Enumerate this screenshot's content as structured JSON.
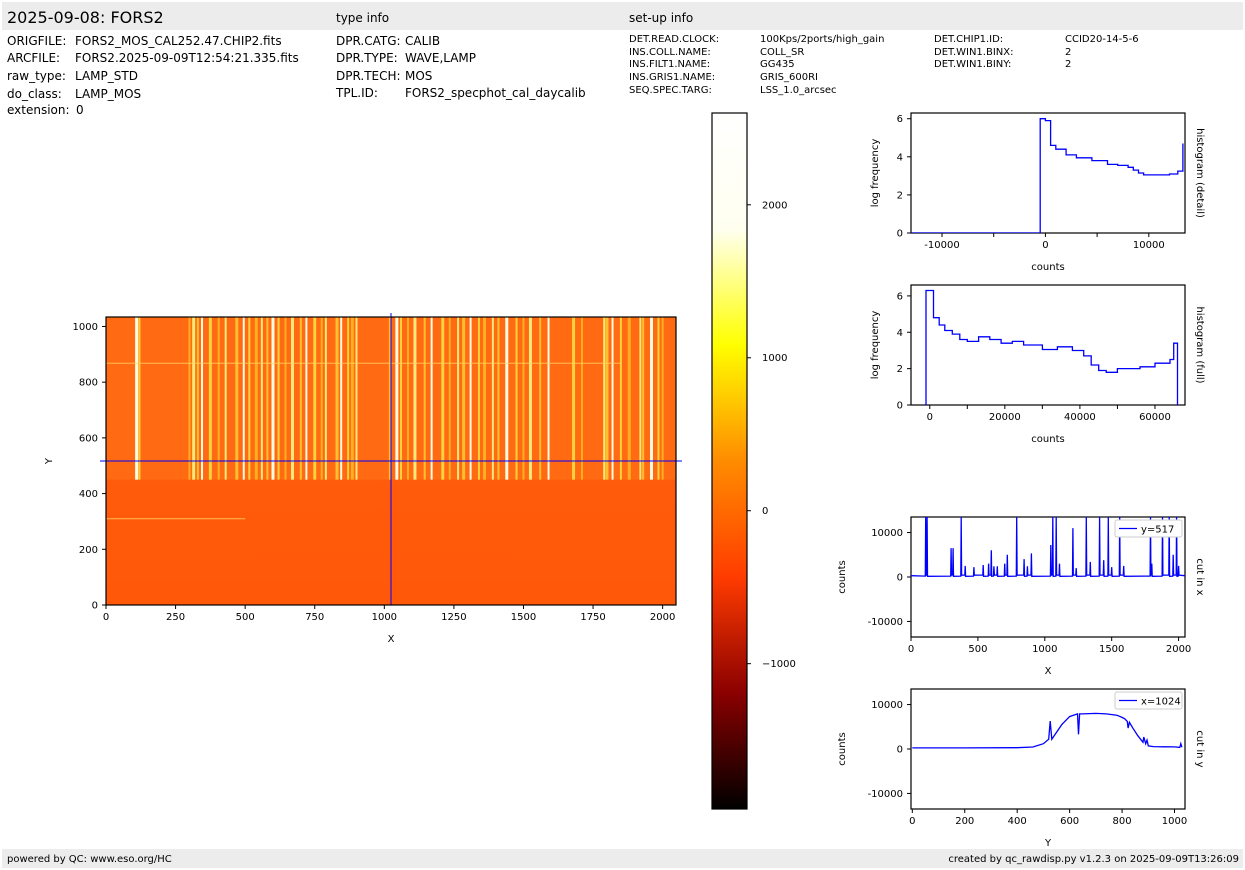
{
  "header": {
    "title": "2025-09-08: FORS2",
    "type_info_label": "type info",
    "setup_info_label": "set-up info"
  },
  "file_info": [
    {
      "key": "ORIGFILE:",
      "value": "FORS2_MOS_CAL252.47.CHIP2.fits"
    },
    {
      "key": "ARCFILE:",
      "value": "FORS2.2025-09-09T12:54:21.335.fits"
    },
    {
      "key": "raw_type:",
      "value": "LAMP_STD"
    },
    {
      "key": "do_class:",
      "value": "LAMP_MOS"
    },
    {
      "key": "extension:",
      "value": "0"
    }
  ],
  "type_info": [
    {
      "key": "DPR.CATG:",
      "value": "CALIB"
    },
    {
      "key": "DPR.TYPE:",
      "value": "WAVE,LAMP"
    },
    {
      "key": "DPR.TECH:",
      "value": "MOS"
    },
    {
      "key": "TPL.ID:",
      "value": "FORS2_specphot_cal_daycalib"
    }
  ],
  "setup_info": [
    {
      "key": "DET.READ.CLOCK:",
      "value": "100Kps/2ports/high_gain"
    },
    {
      "key": "INS.COLL.NAME:",
      "value": "COLL_SR"
    },
    {
      "key": "INS.FILT1.NAME:",
      "value": "GG435"
    },
    {
      "key": "INS.GRIS1.NAME:",
      "value": "GRIS_600RI"
    },
    {
      "key": "SEQ.SPEC.TARG:",
      "value": "LSS_1.0_arcsec"
    }
  ],
  "setup_info2": [
    {
      "key": "DET.CHIP1.ID:",
      "value": "CCID20-14-5-6"
    },
    {
      "key": "DET.WIN1.BINX:",
      "value": "2"
    },
    {
      "key": "DET.WIN1.BINY:",
      "value": "2"
    }
  ],
  "footer": {
    "left": "powered by QC: www.eso.org/HC",
    "right": "created by qc_rawdisp.py v1.2.3 on 2025-09-09T13:26:09"
  },
  "colors": {
    "line": "#0000ff",
    "axis": "#000000",
    "band": "#ececec",
    "colormap": [
      "#000000",
      "#8b0000",
      "#ff3c00",
      "#ff8c00",
      "#ffff00",
      "#fffff0",
      "#ffffff"
    ]
  },
  "chart_data": [
    {
      "type": "heatmap",
      "name": "raw-image",
      "xlabel": "X",
      "ylabel": "Y",
      "xlim": [
        0,
        2048
      ],
      "ylim": [
        0,
        1034
      ],
      "xticks": [
        "0",
        "250",
        "500",
        "750",
        "1000",
        "1250",
        "1500",
        "1750",
        "2000"
      ],
      "yticks": [
        "0",
        "200",
        "400",
        "600",
        "800",
        "1000"
      ],
      "cut_x_position": 1024,
      "cut_y_position": 517,
      "background_level": 300,
      "line_region_y": [
        450,
        1034
      ],
      "arc_lines_x": [
        110,
        120,
        300,
        315,
        330,
        345,
        375,
        405,
        430,
        470,
        495,
        515,
        540,
        560,
        580,
        600,
        620,
        645,
        670,
        700,
        720,
        750,
        775,
        790,
        830,
        845,
        870,
        885,
        900,
        1020,
        1045,
        1060,
        1085,
        1110,
        1145,
        1170,
        1210,
        1235,
        1265,
        1285,
        1310,
        1340,
        1360,
        1390,
        1410,
        1440,
        1475,
        1500,
        1525,
        1560,
        1590,
        1680,
        1710,
        1790,
        1800,
        1820,
        1850,
        1880,
        1920,
        1930,
        1960,
        1985,
        2000
      ]
    },
    {
      "type": "colorbar",
      "name": "colorbar",
      "range": [
        -1950,
        2600
      ],
      "ticks": [
        -1000,
        0,
        1000,
        2000
      ],
      "tick_labels": [
        "−1000",
        "0",
        "1000",
        "2000"
      ]
    },
    {
      "type": "line",
      "name": "histogram-detail",
      "side_label": "histogram (detail)",
      "xlabel": "counts",
      "ylabel": "log frequency",
      "xlim": [
        -13000,
        13500
      ],
      "ylim": [
        0,
        6.3
      ],
      "xticks": [
        -10000,
        0,
        10000
      ],
      "xtick_labels": [
        "-10000",
        "0",
        "10000"
      ],
      "yticks": [
        0,
        2,
        4,
        6
      ],
      "x": [
        -13000,
        -500,
        -500,
        0,
        0,
        500,
        500,
        1000,
        1000,
        2000,
        2000,
        3000,
        3000,
        4500,
        4500,
        6000,
        6000,
        7000,
        7000,
        8000,
        8000,
        8500,
        8500,
        9000,
        9000,
        9500,
        9500,
        12000,
        12000,
        12800,
        12800,
        13300,
        13300
      ],
      "y": [
        0,
        0,
        6.0,
        6.0,
        5.9,
        5.9,
        4.6,
        4.6,
        4.4,
        4.4,
        4.1,
        4.1,
        3.95,
        3.95,
        3.8,
        3.8,
        3.6,
        3.6,
        3.55,
        3.55,
        3.45,
        3.45,
        3.3,
        3.3,
        3.15,
        3.15,
        3.05,
        3.05,
        3.1,
        3.1,
        3.25,
        3.25,
        4.7
      ]
    },
    {
      "type": "line",
      "name": "histogram-full",
      "side_label": "histogram (full)",
      "xlabel": "counts",
      "ylabel": "log frequency",
      "xlim": [
        -5000,
        68000
      ],
      "ylim": [
        0,
        6.6
      ],
      "xticks": [
        0,
        20000,
        40000,
        60000
      ],
      "xtick_labels": [
        "0",
        "20000",
        "40000",
        "60000"
      ],
      "yticks": [
        0,
        2,
        4,
        6
      ],
      "x": [
        -1000,
        -1000,
        1000,
        1000,
        2500,
        2500,
        4000,
        4000,
        6000,
        6000,
        8000,
        8000,
        10000,
        10000,
        13000,
        13000,
        16000,
        16000,
        19000,
        19000,
        22000,
        22000,
        25000,
        25000,
        30000,
        30000,
        34000,
        34000,
        38000,
        38000,
        41000,
        41000,
        43000,
        43000,
        45000,
        45000,
        47000,
        47000,
        50000,
        50000,
        56000,
        56000,
        60000,
        60000,
        64000,
        64000,
        65000,
        65000,
        66000,
        66000
      ],
      "y": [
        0,
        6.3,
        6.3,
        4.8,
        4.8,
        4.4,
        4.4,
        4.1,
        4.1,
        3.9,
        3.9,
        3.6,
        3.6,
        3.5,
        3.5,
        3.75,
        3.75,
        3.6,
        3.6,
        3.4,
        3.4,
        3.5,
        3.5,
        3.3,
        3.3,
        3.05,
        3.05,
        3.2,
        3.2,
        3.0,
        3.0,
        2.7,
        2.7,
        2.2,
        2.2,
        1.9,
        1.9,
        1.8,
        1.8,
        2.0,
        2.0,
        2.1,
        2.1,
        2.3,
        2.3,
        2.5,
        2.5,
        3.4,
        3.4,
        0
      ]
    },
    {
      "type": "line",
      "name": "cut-in-x",
      "side_label": "cut in x",
      "legend": "y=517",
      "xlabel": "X",
      "ylabel": "counts",
      "xlim": [
        0,
        2048
      ],
      "ylim": [
        -13500,
        13500
      ],
      "xticks": [
        0,
        500,
        1000,
        1500,
        2000
      ],
      "yticks": [
        -10000,
        0,
        10000
      ],
      "baseline": 300,
      "peaks_x": [
        110,
        120,
        300,
        315,
        375,
        405,
        470,
        540,
        580,
        600,
        620,
        645,
        700,
        720,
        790,
        845,
        870,
        900,
        1045,
        1060,
        1085,
        1110,
        1210,
        1235,
        1310,
        1340,
        1410,
        1440,
        1475,
        1500,
        1560,
        1590,
        1790,
        1800,
        1880,
        1930,
        1960,
        1985,
        2000
      ],
      "peaks_y": [
        13500,
        13500,
        6500,
        6500,
        13500,
        2500,
        2200,
        2700,
        3000,
        6000,
        2400,
        2400,
        3000,
        5000,
        13500,
        4000,
        2400,
        5300,
        7200,
        13500,
        13500,
        3000,
        11000,
        2000,
        13500,
        3400,
        13500,
        3800,
        13500,
        2200,
        13500,
        2500,
        13500,
        3000,
        13500,
        13500,
        5000,
        13500,
        2500
      ]
    },
    {
      "type": "line",
      "name": "cut-in-y",
      "side_label": "cut in y",
      "legend": "x=1024",
      "xlabel": "Y",
      "ylabel": "counts",
      "xlim": [
        -5,
        1040
      ],
      "ylim": [
        -13500,
        13500
      ],
      "xticks": [
        0,
        200,
        400,
        600,
        800,
        1000
      ],
      "yticks": [
        -10000,
        0,
        10000
      ],
      "x": [
        0,
        200,
        400,
        460,
        500,
        520,
        526,
        532,
        540,
        570,
        600,
        620,
        630,
        634,
        638,
        650,
        700,
        740,
        780,
        800,
        810,
        820,
        823,
        828,
        840,
        860,
        880,
        883,
        890,
        895,
        900,
        920,
        960,
        1000,
        1020,
        1024,
        1028
      ],
      "y": [
        250,
        250,
        300,
        450,
        1200,
        2200,
        6300,
        2200,
        2900,
        5500,
        7300,
        7700,
        7900,
        3300,
        7900,
        7900,
        8000,
        7900,
        7600,
        7100,
        6800,
        6200,
        4700,
        6000,
        4800,
        3000,
        1500,
        2700,
        1200,
        2000,
        700,
        550,
        500,
        480,
        350,
        1200,
        400
      ]
    }
  ]
}
